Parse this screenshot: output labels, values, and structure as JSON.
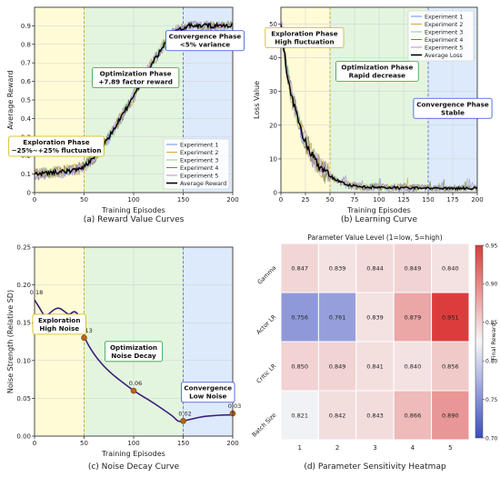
{
  "chart_data": [
    {
      "type": "line",
      "caption": "(a) Reward Value Curves",
      "xlabel": "Training Episodes",
      "ylabel": "Average Reward",
      "xlim": [
        0,
        200
      ],
      "ylim": [
        0.0,
        1.0
      ],
      "x_ticks": [
        0,
        50,
        100,
        150,
        200
      ],
      "y_ticks": [
        0.0,
        0.1,
        0.2,
        0.3,
        0.4,
        0.5,
        0.6,
        0.7,
        0.8,
        0.9
      ],
      "grid": true,
      "legend_position": "lower-right",
      "phases": [
        {
          "from": 0,
          "to": 50,
          "color": "#fffbd6"
        },
        {
          "from": 50,
          "to": 150,
          "color": "#e3f5df"
        },
        {
          "from": 150,
          "to": 200,
          "color": "#ddeafc"
        }
      ],
      "phase_lines": [
        50,
        150
      ],
      "annotations": [
        {
          "lines": [
            "Exploration Phase",
            "−25%~+25% fluctuation"
          ],
          "x": 22,
          "y": 0.25,
          "border": "#d4b400"
        },
        {
          "lines": [
            "Optimization Phase",
            "+7.89 factor reward"
          ],
          "x": 102,
          "y": 0.62,
          "border": "#2e9e3a"
        },
        {
          "lines": [
            "Convergence Phase",
            "<5% variance"
          ],
          "x": 172,
          "y": 0.82,
          "border": "#2f4fdf"
        }
      ],
      "series": [
        {
          "name": "Experiment 1",
          "color": "#6a8ee6"
        },
        {
          "name": "Experiment 2",
          "color": "#d9a441"
        },
        {
          "name": "Experiment 3",
          "color": "#8fcf8a"
        },
        {
          "name": "Experiment 4",
          "color": "#8a7a4a"
        },
        {
          "name": "Experiment 5",
          "color": "#b38ed6"
        },
        {
          "name": "Average Reward",
          "color": "#000000",
          "x": [
            0,
            10,
            20,
            30,
            40,
            50,
            60,
            70,
            80,
            90,
            100,
            110,
            120,
            130,
            140,
            150,
            155,
            160,
            170,
            180,
            190,
            200
          ],
          "y": [
            0.1,
            0.105,
            0.11,
            0.115,
            0.12,
            0.14,
            0.19,
            0.26,
            0.34,
            0.43,
            0.52,
            0.62,
            0.71,
            0.79,
            0.86,
            0.89,
            0.9,
            0.9,
            0.9,
            0.9,
            0.9,
            0.9
          ]
        }
      ]
    },
    {
      "type": "line",
      "caption": "(b) Learning Curve",
      "xlabel": "Training Episodes",
      "ylabel": "Loss Value",
      "xlim": [
        0,
        200
      ],
      "ylim": [
        0,
        55
      ],
      "x_ticks": [
        0,
        25,
        50,
        75,
        100,
        125,
        150,
        175,
        200
      ],
      "y_ticks": [
        0,
        10,
        20,
        30,
        40,
        50
      ],
      "grid": true,
      "legend_position": "top-right",
      "phases": [
        {
          "from": 0,
          "to": 50,
          "color": "#fffbd6"
        },
        {
          "from": 50,
          "to": 150,
          "color": "#e3f5df"
        },
        {
          "from": 150,
          "to": 200,
          "color": "#ddeafc"
        }
      ],
      "phase_lines": [
        50,
        150
      ],
      "annotations": [
        {
          "lines": [
            "Exploration Phase",
            "High fluctuation"
          ],
          "x": 24,
          "y": 46,
          "border": "#d4b400"
        },
        {
          "lines": [
            "Optimization Phase",
            "Rapid decrease"
          ],
          "x": 98,
          "y": 36,
          "border": "#2e9e3a"
        },
        {
          "lines": [
            "Convergence Phase",
            "Stable"
          ],
          "x": 175,
          "y": 25,
          "border": "#2f4fdf"
        }
      ],
      "series": [
        {
          "name": "Experiment 1",
          "color": "#6a8ee6"
        },
        {
          "name": "Experiment 2",
          "color": "#d9a441"
        },
        {
          "name": "Experiment 3",
          "color": "#8fcf8a"
        },
        {
          "name": "Experiment 4",
          "color": "#8a7a4a"
        },
        {
          "name": "Experiment 5",
          "color": "#b38ed6"
        },
        {
          "name": "Average Loss",
          "color": "#000000",
          "x": [
            0,
            5,
            10,
            15,
            20,
            25,
            30,
            35,
            40,
            45,
            50,
            55,
            60,
            65,
            70,
            80,
            90,
            100,
            125,
            150,
            175,
            200
          ],
          "y": [
            50,
            38,
            30,
            24,
            19,
            15,
            12,
            9.5,
            7.5,
            6,
            5,
            4,
            3.2,
            2.6,
            2.2,
            1.8,
            1.6,
            1.5,
            1.4,
            1.3,
            1.3,
            1.3
          ]
        }
      ]
    },
    {
      "type": "line",
      "caption": "(c) Noise Decay Curve",
      "xlabel": "Training Episodes",
      "ylabel": "Noise Strength (Relative SD)",
      "xlim": [
        0,
        200
      ],
      "ylim": [
        0.0,
        0.25
      ],
      "x_ticks": [
        0,
        50,
        100,
        150,
        200
      ],
      "y_ticks": [
        0.0,
        0.05,
        0.1,
        0.15,
        0.2,
        0.25
      ],
      "y_tick_labels": [
        "0.00",
        "0.05",
        "0.10",
        "0.15",
        "0.20",
        "0.25"
      ],
      "grid": true,
      "phases": [
        {
          "from": 0,
          "to": 50,
          "color": "#fffbd6"
        },
        {
          "from": 50,
          "to": 150,
          "color": "#e3f5df"
        },
        {
          "from": 150,
          "to": 200,
          "color": "#ddeafc"
        }
      ],
      "phase_lines": [
        50,
        150
      ],
      "annotations": [
        {
          "lines": [
            "Exploration",
            "High Noise"
          ],
          "x": 25,
          "y": 0.148,
          "border": "#d4b400"
        },
        {
          "lines": [
            "Optimization",
            "Noise Decay"
          ],
          "x": 100,
          "y": 0.112,
          "border": "#2e9e3a"
        },
        {
          "lines": [
            "Convergence",
            "Low Noise"
          ],
          "x": 175,
          "y": 0.058,
          "border": "#2f4fdf"
        }
      ],
      "series": [
        {
          "name": "Noise",
          "color": "#3a1f7a",
          "x": [
            0,
            5,
            10,
            15,
            20,
            25,
            30,
            35,
            40,
            45,
            50,
            60,
            70,
            80,
            90,
            100,
            110,
            120,
            130,
            140,
            145,
            150,
            160,
            170,
            180,
            190,
            200
          ],
          "y": [
            0.18,
            0.17,
            0.158,
            0.162,
            0.168,
            0.17,
            0.165,
            0.16,
            0.166,
            0.16,
            0.13,
            0.108,
            0.092,
            0.08,
            0.07,
            0.06,
            0.052,
            0.044,
            0.035,
            0.026,
            0.019,
            0.02,
            0.023,
            0.026,
            0.027,
            0.028,
            0.028
          ]
        }
      ],
      "markers": [
        {
          "x": 50,
          "y": 0.13,
          "label": "0.13"
        },
        {
          "x": 100,
          "y": 0.06,
          "label": "0.06"
        },
        {
          "x": 150,
          "y": 0.02,
          "label": "0.02"
        },
        {
          "x": 200,
          "y": 0.03,
          "label": "0.03"
        }
      ],
      "start_label": {
        "x": 0,
        "y": 0.18,
        "label": "0.18"
      }
    },
    {
      "type": "heatmap",
      "caption": "(d) Parameter Sensitivity Heatmap",
      "title": "Parameter Value Level (1=low, 5=high)",
      "rows": [
        "Gamma",
        "Actor LR",
        "Critic LR",
        "Batch Size"
      ],
      "cols": [
        "1",
        "2",
        "3",
        "4",
        "5"
      ],
      "values": [
        [
          0.847,
          0.839,
          0.844,
          0.849,
          0.84
        ],
        [
          0.756,
          0.761,
          0.839,
          0.879,
          0.951
        ],
        [
          0.85,
          0.849,
          0.841,
          0.84,
          0.856
        ],
        [
          0.821,
          0.842,
          0.843,
          0.866,
          0.89
        ]
      ],
      "colorbar": {
        "label": "Final Reward",
        "min": 0.7,
        "max": 0.95,
        "ticks": [
          0.7,
          0.75,
          0.8,
          0.85,
          0.9,
          0.95
        ]
      }
    }
  ]
}
